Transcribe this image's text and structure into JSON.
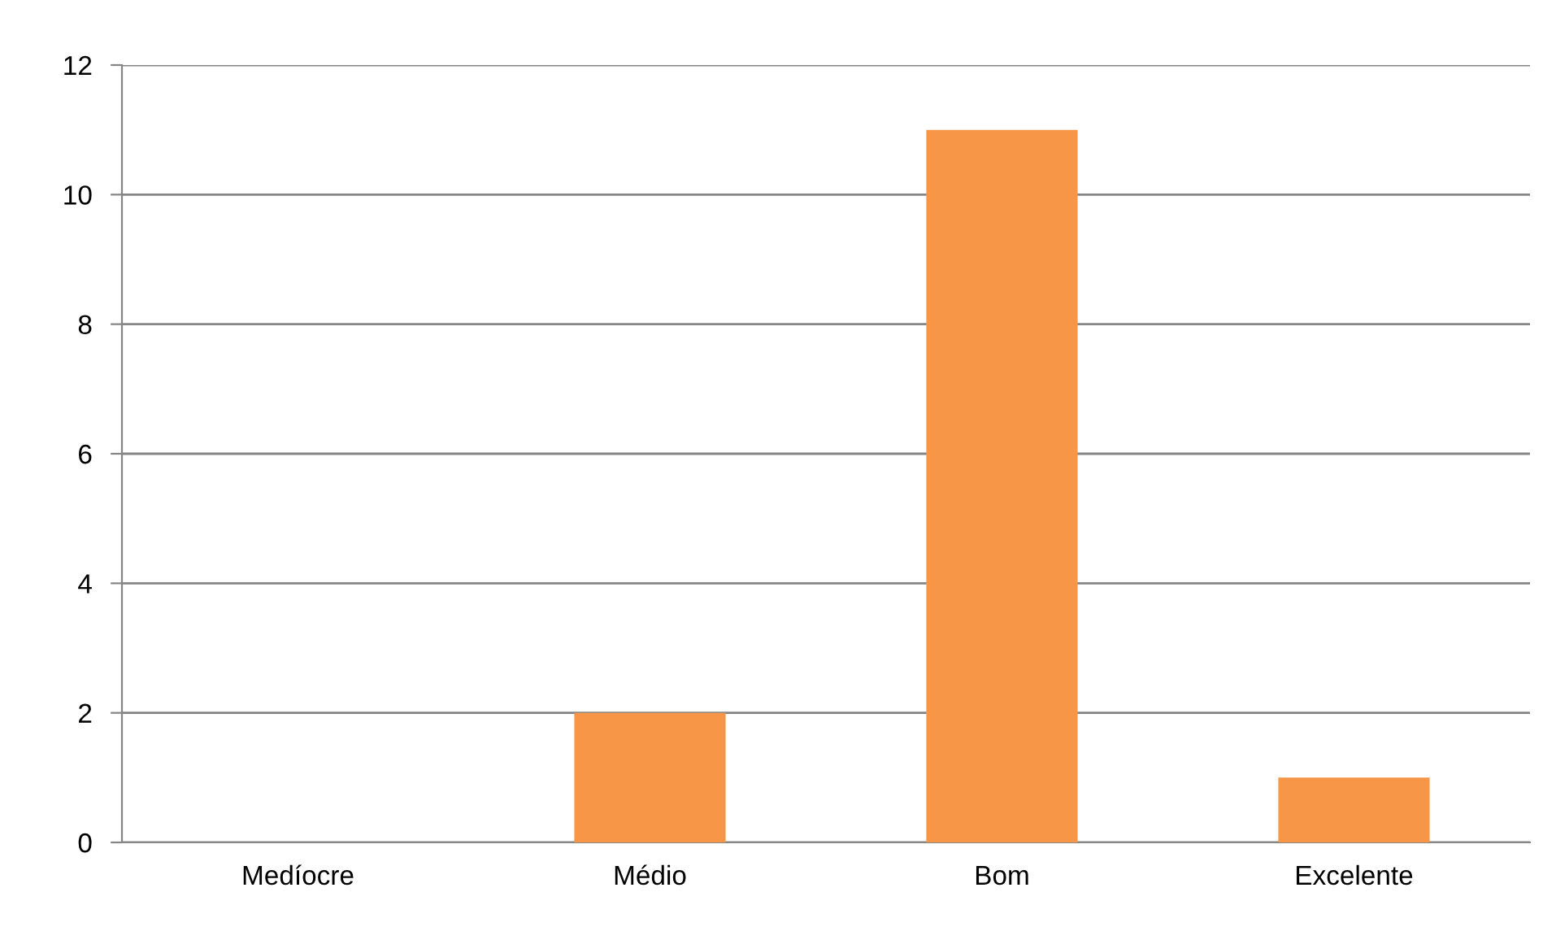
{
  "chart_data": {
    "type": "bar",
    "categories": [
      "Medíocre",
      "Médio",
      "Bom",
      "Excelente"
    ],
    "values": [
      0,
      2,
      11,
      1
    ],
    "color": "#f79646",
    "ylim": [
      0,
      12
    ],
    "yticks": [
      0,
      2,
      4,
      6,
      8,
      10,
      12
    ],
    "grid": "y"
  }
}
